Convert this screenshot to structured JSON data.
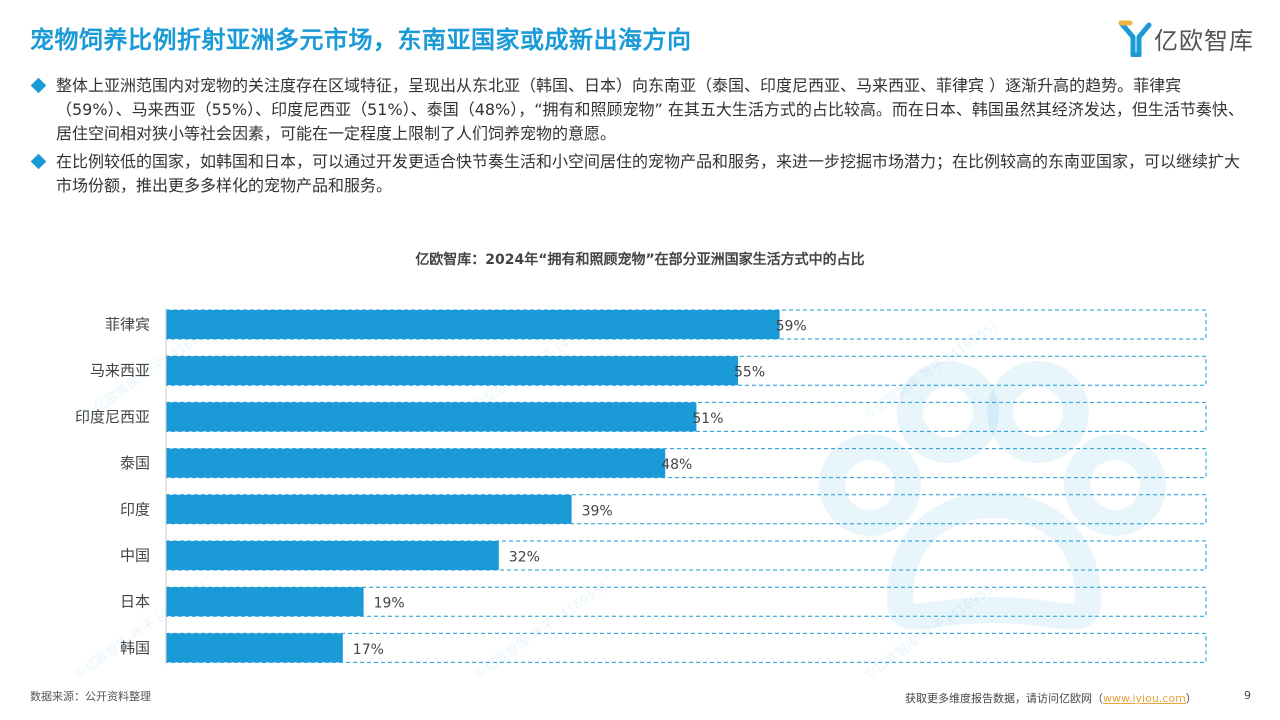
{
  "header": {
    "title": "宠物饲养比例折射亚洲多元市场，东南亚国家或成新出海方向",
    "logo_text": "亿欧智库"
  },
  "bullets": [
    "整体上亚洲范围内对宠物的关注度存在区域特征，呈现出从东北亚（韩国、日本）向东南亚（泰国、印度尼西亚、马来西亚、菲律宾 ）逐渐升高的趋势。菲律宾（59%）、马来西亚（55%）、印度尼西亚（51%）、泰国（48%），“拥有和照顾宠物” 在其五大生活方式的占比较高。而在日本、韩国虽然其经济发达，但生活节奏快、居住空间相对狭小等社会因素，可能在一定程度上限制了人们饲养宠物的意愿。",
    "在比例较低的国家，如韩国和日本，可以通过开发更适合快节奏生活和小空间居住的宠物产品和服务，来进一步挖掘市场潜力；在比例较高的东南亚国家，可以继续扩大市场份额，推出更多多样化的宠物产品和服务。"
  ],
  "chart_data": {
    "type": "bar",
    "orientation": "horizontal",
    "title": "亿欧智库：2024年“拥有和照顾宠物”在部分亚洲国家生活方式中的占比",
    "categories": [
      "菲律宾",
      "马来西亚",
      "印度尼西亚",
      "泰国",
      "印度",
      "中国",
      "日本",
      "韩国"
    ],
    "values": [
      59,
      55,
      51,
      48,
      39,
      32,
      19,
      17
    ],
    "value_labels": [
      "59%",
      "55%",
      "51%",
      "48%",
      "39%",
      "32%",
      "19%",
      "17%"
    ],
    "xlim": [
      0,
      100
    ],
    "unit": "%",
    "grid": false,
    "legend": "none",
    "bar_color": "#1a9ad6"
  },
  "footer": {
    "source": "数据来源：公开资料整理",
    "note_prefix": "获取更多维度报告数据，请访问亿欧网（",
    "link": "www.iyiou.com",
    "note_suffix": "）",
    "page_number": "9"
  },
  "watermark": "©亿欧智库-叶子 (416955)",
  "colors": {
    "accent": "#1a9ad6",
    "link": "#e8a33d"
  }
}
